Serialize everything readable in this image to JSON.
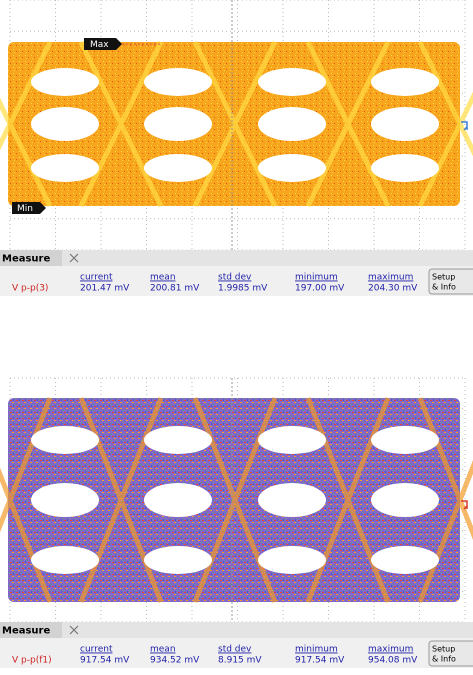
{
  "panels": [
    {
      "markers": {
        "max": "Max",
        "min": "Min"
      },
      "measure": {
        "tab": "Measure",
        "headers": [
          "current",
          "mean",
          "std dev",
          "minimum",
          "maximum"
        ],
        "row": {
          "label": "V p-p(3)",
          "values": [
            "201.47 mV",
            "200.81 mV",
            "1.9985 mV",
            "197.00 mV",
            "204.30 mV"
          ]
        }
      },
      "button": [
        "Setup",
        "& Info"
      ]
    },
    {
      "measure": {
        "tab": "Measure",
        "headers": [
          "current",
          "mean",
          "std dev",
          "minimum",
          "maximum"
        ],
        "row": {
          "label": "V p-p(f1)",
          "values": [
            "917.54 mV",
            "934.52 mV",
            "8.915 mV",
            "917.54 mV",
            "954.08 mV"
          ]
        }
      },
      "button": [
        "Setup",
        "& Info"
      ]
    }
  ]
}
